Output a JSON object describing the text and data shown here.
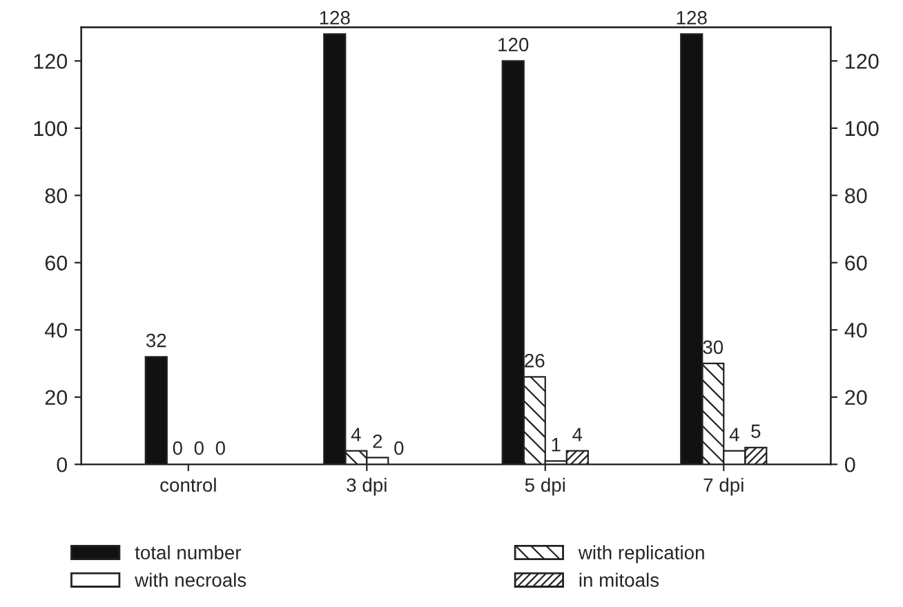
{
  "chart_data": {
    "type": "bar",
    "categories": [
      "control",
      "3 dpi",
      "5 dpi",
      "7 dpi"
    ],
    "series": [
      {
        "name": "total number",
        "color": "#111111",
        "values": [
          32,
          128,
          120,
          128
        ]
      },
      {
        "name": "with replication",
        "color": "#222222",
        "values": [
          0,
          4,
          26,
          30
        ]
      },
      {
        "name": "with necroals",
        "color": "#ffffff",
        "values": [
          0,
          2,
          1,
          4
        ]
      },
      {
        "name": "in mitoals",
        "color": "#222222",
        "values": [
          0,
          0,
          4,
          5
        ]
      }
    ],
    "ylim": [
      0,
      130
    ],
    "yticks": [
      0,
      20,
      40,
      60,
      80,
      100,
      120
    ],
    "y2lim": [
      0,
      130
    ],
    "y2ticks": [
      0,
      20,
      40,
      60,
      80,
      100,
      120
    ],
    "data_labels": true,
    "legend": "bottom",
    "grid": false
  }
}
